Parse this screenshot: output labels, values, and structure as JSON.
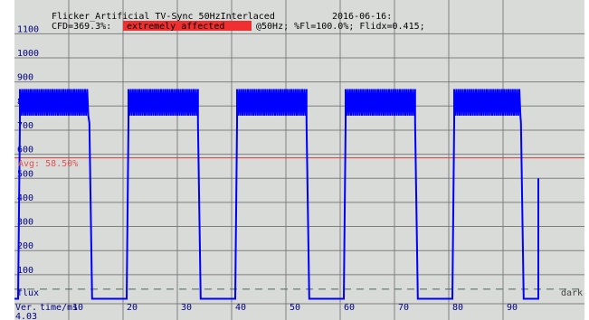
{
  "header": {
    "title": "Flicker_Artificial_TV-Sync_50HzInterlaced",
    "date": "2016-06-16:",
    "cfd_prefix": "CFD=369.3%:",
    "severity": "extremely affected",
    "cfd_suffix": "@50Hz; %Fl=100.0%; Flidx=0.415;"
  },
  "labels": {
    "avg": "Avg: 58.50%",
    "flux": "flux",
    "dark": "dark",
    "xaxis": "time/ms",
    "version_line1": "Ver.",
    "version_line2": "4.03"
  },
  "colors": {
    "background": "#d9dbd9",
    "grid": "#7f7f7f",
    "signal": "#0000ff",
    "avg_line": "#c84040",
    "severity_bg": "#f03030",
    "severity_fg": "#ffffff",
    "axis_text": "#000080"
  },
  "chart_data": {
    "type": "line",
    "title": "Flicker_Artificial_TV-Sync_50HzInterlaced",
    "xlabel": "time/ms",
    "ylabel": "",
    "xlim": [
      0,
      97
    ],
    "ylim": [
      0,
      1160
    ],
    "x_ticks": [
      10,
      20,
      30,
      40,
      50,
      60,
      70,
      80,
      90
    ],
    "y_ticks": [
      100,
      200,
      300,
      400,
      500,
      600,
      700,
      800,
      900,
      1000,
      1100
    ],
    "grid": true,
    "average_percent": 58.5,
    "average_level": 585,
    "dark_level": 40,
    "series": [
      {
        "pulses": [
          {
            "start": 1.0,
            "end": 13.8
          },
          {
            "start": 21.0,
            "end": 33.8
          },
          {
            "start": 41.0,
            "end": 53.8
          },
          {
            "start": 61.0,
            "end": 73.8
          },
          {
            "start": 81.0,
            "end": 93.3
          }
        ],
        "high_min": 730,
        "high_max": 870,
        "ripple_low": 760,
        "low": 0,
        "tail_rise_at": 97
      }
    ]
  }
}
